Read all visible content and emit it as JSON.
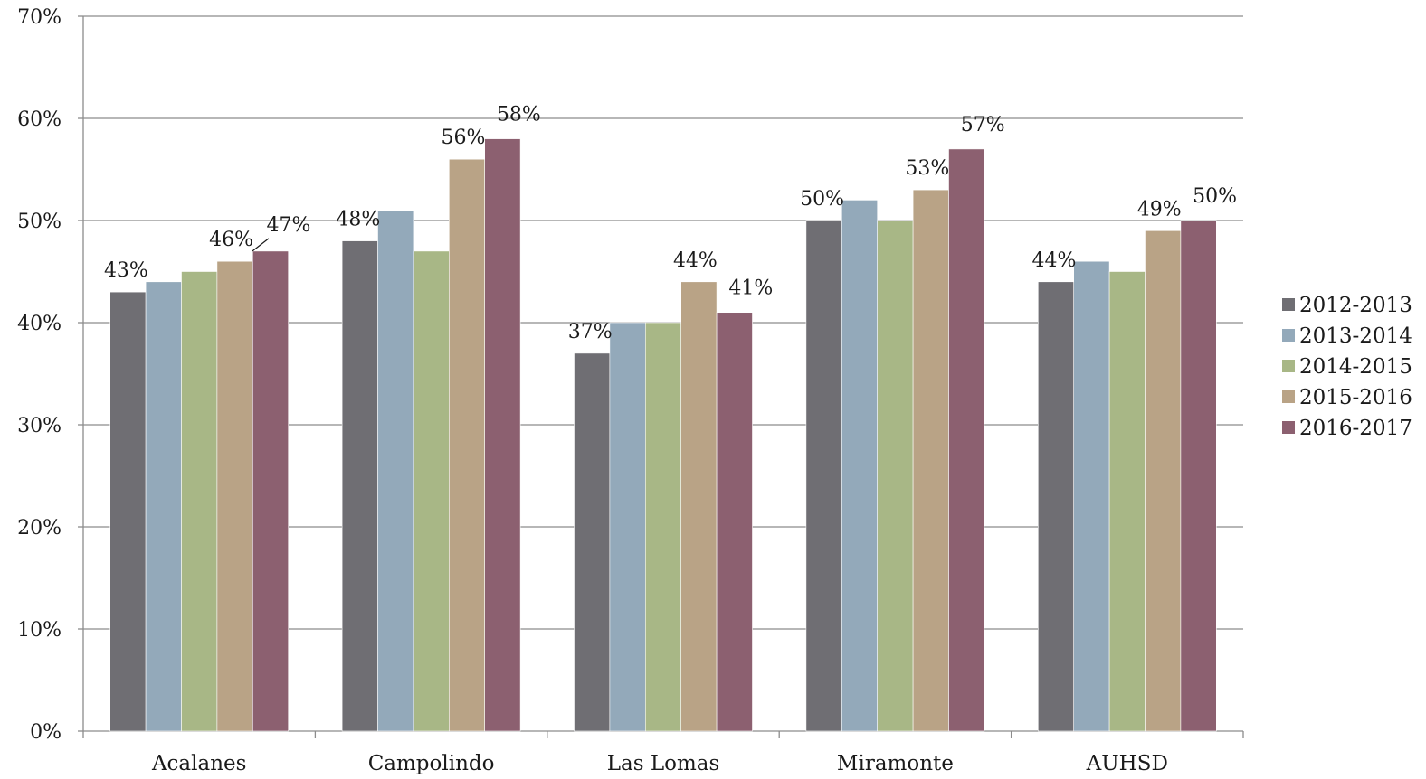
{
  "chart_data": {
    "type": "bar",
    "categories": [
      "Acalanes",
      "Campolindo",
      "Las Lomas",
      "Miramonte",
      "AUHSD"
    ],
    "series": [
      {
        "name": "2012-2013",
        "color": "#6f6e73",
        "values": [
          43,
          48,
          37,
          50,
          44
        ]
      },
      {
        "name": "2013-2014",
        "color": "#93a9ba",
        "values": [
          44,
          51,
          40,
          52,
          46
        ]
      },
      {
        "name": "2014-2015",
        "color": "#a8b786",
        "values": [
          45,
          47,
          40,
          50,
          45
        ]
      },
      {
        "name": "2015-2016",
        "color": "#b9a386",
        "values": [
          46,
          56,
          44,
          53,
          49
        ]
      },
      {
        "name": "2016-2017",
        "color": "#8c6070",
        "values": [
          47,
          58,
          41,
          57,
          50
        ]
      }
    ],
    "data_labels": [
      {
        "category": "Acalanes",
        "series": "2012-2013",
        "text": "43%"
      },
      {
        "category": "Acalanes",
        "series": "2015-2016",
        "text": "46%"
      },
      {
        "category": "Acalanes",
        "series": "2016-2017",
        "text": "47%"
      },
      {
        "category": "Campolindo",
        "series": "2012-2013",
        "text": "48%"
      },
      {
        "category": "Campolindo",
        "series": "2015-2016",
        "text": "56%"
      },
      {
        "category": "Campolindo",
        "series": "2016-2017",
        "text": "58%"
      },
      {
        "category": "Las Lomas",
        "series": "2012-2013",
        "text": "37%"
      },
      {
        "category": "Las Lomas",
        "series": "2015-2016",
        "text": "44%"
      },
      {
        "category": "Las Lomas",
        "series": "2016-2017",
        "text": "41%"
      },
      {
        "category": "Miramonte",
        "series": "2012-2013",
        "text": "50%"
      },
      {
        "category": "Miramonte",
        "series": "2015-2016",
        "text": "53%"
      },
      {
        "category": "Miramonte",
        "series": "2016-2017",
        "text": "57%"
      },
      {
        "category": "AUHSD",
        "series": "2012-2013",
        "text": "44%"
      },
      {
        "category": "AUHSD",
        "series": "2015-2016",
        "text": "49%"
      },
      {
        "category": "AUHSD",
        "series": "2016-2017",
        "text": "50%"
      }
    ],
    "y_ticks": [
      "0%",
      "10%",
      "20%",
      "30%",
      "40%",
      "50%",
      "60%",
      "70%"
    ],
    "ylim": [
      0,
      70
    ],
    "grid": true,
    "legend_position": "right",
    "title": "",
    "xlabel": "",
    "ylabel": ""
  }
}
